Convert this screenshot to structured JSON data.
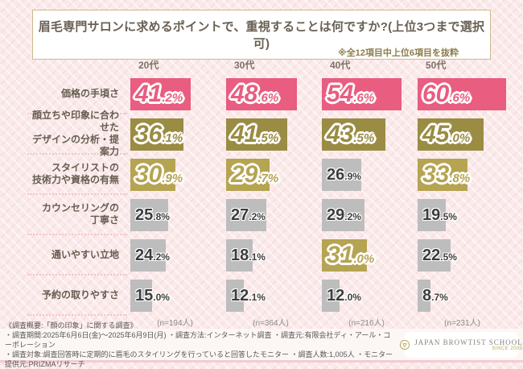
{
  "header": {
    "title": "眉毛専門サロンに求めるポイントで、重視することは何ですか?(上位3つまで選択可)",
    "note": "※全12項目中上位6項目を抜粋"
  },
  "columns": [
    {
      "label": "20代",
      "n_label": "(n=194人)"
    },
    {
      "label": "30代",
      "n_label": "(n=364人)"
    },
    {
      "label": "40代",
      "n_label": "(n=216人)"
    },
    {
      "label": "50代",
      "n_label": "(n=231人)"
    }
  ],
  "rows": [
    {
      "label_lines": [
        "価格の手頃さ"
      ],
      "values": [
        41.2,
        48.6,
        54.6,
        60.6
      ],
      "styles": [
        "pink",
        "pink",
        "pink",
        "pink"
      ]
    },
    {
      "label_lines": [
        "顔立ちや印象に合わせた",
        "デザインの分析・提案力"
      ],
      "values": [
        36.1,
        41.5,
        43.5,
        45.0
      ],
      "styles": [
        "olive",
        "olive",
        "olive",
        "olive"
      ]
    },
    {
      "label_lines": [
        "スタイリストの",
        "技術力や資格の有無"
      ],
      "values": [
        30.9,
        29.7,
        26.9,
        33.8
      ],
      "styles": [
        "gold",
        "gold",
        "gray",
        "gold"
      ]
    },
    {
      "label_lines": [
        "カウンセリングの",
        "丁寧さ"
      ],
      "values": [
        25.8,
        27.2,
        29.2,
        19.5
      ],
      "styles": [
        "gray",
        "gray",
        "gray",
        "gray"
      ]
    },
    {
      "label_lines": [
        "通いやすい立地"
      ],
      "values": [
        24.2,
        18.1,
        31.0,
        22.5
      ],
      "styles": [
        "gray",
        "gray",
        "gold",
        "gray"
      ]
    },
    {
      "label_lines": [
        "予約の取りやすさ"
      ],
      "values": [
        15.0,
        12.1,
        12.0,
        8.7
      ],
      "styles": [
        "gray",
        "gray",
        "gray",
        "gray"
      ]
    }
  ],
  "footer": {
    "line1": "《調査概要:「顔の印象」に関する調査》",
    "line2": "・調査期間:2025年6月6日(金)〜2025年6月9日(月) ・調査方法:インターネット調査 ・調査元:有限会社ディ・アール・コーポレーション",
    "line3": "・調査対象:調査回答時に定期的に眉毛のスタイリングを行っていると回答したモニター ・調査人数:1,005人 ・モニター提供元:PRIZMAリサーチ"
  },
  "logo": {
    "name": "JAPAN BROWTIST SCHOOL",
    "sub": "SINCE 2005"
  },
  "colors": {
    "pink": "#e85d80",
    "olive": "#9a8c43",
    "gold": "#b5a452",
    "gray": "#bdbdbd",
    "dark_text": "#3d3d3d",
    "bg": "#fbeaea"
  },
  "chart_data": {
    "type": "bar",
    "title": "眉毛専門サロンに求めるポイントで、重視することは何ですか?(上位3つまで選択可)",
    "subtitle": "※全12項目中上位6項目を抜粋",
    "categories": [
      "価格の手頃さ",
      "顔立ちや印象に合わせたデザインの分析・提案力",
      "スタイリストの技術力や資格の有無",
      "カウンセリングの丁寧さ",
      "通いやすい立地",
      "予約の取りやすさ"
    ],
    "series": [
      {
        "name": "20代",
        "n": 194,
        "values": [
          41.2,
          36.1,
          30.9,
          25.8,
          24.2,
          15.0
        ]
      },
      {
        "name": "30代",
        "n": 364,
        "values": [
          48.6,
          41.5,
          29.7,
          27.2,
          18.1,
          12.1
        ]
      },
      {
        "name": "40代",
        "n": 216,
        "values": [
          54.6,
          43.5,
          26.9,
          29.2,
          31.0,
          12.0
        ]
      },
      {
        "name": "50代",
        "n": 231,
        "values": [
          60.6,
          45.0,
          33.8,
          19.5,
          22.5,
          8.7
        ]
      }
    ],
    "unit": "%",
    "value_range": [
      0,
      100
    ],
    "orientation": "horizontal",
    "grid": false,
    "legend_position": "column-headers"
  }
}
